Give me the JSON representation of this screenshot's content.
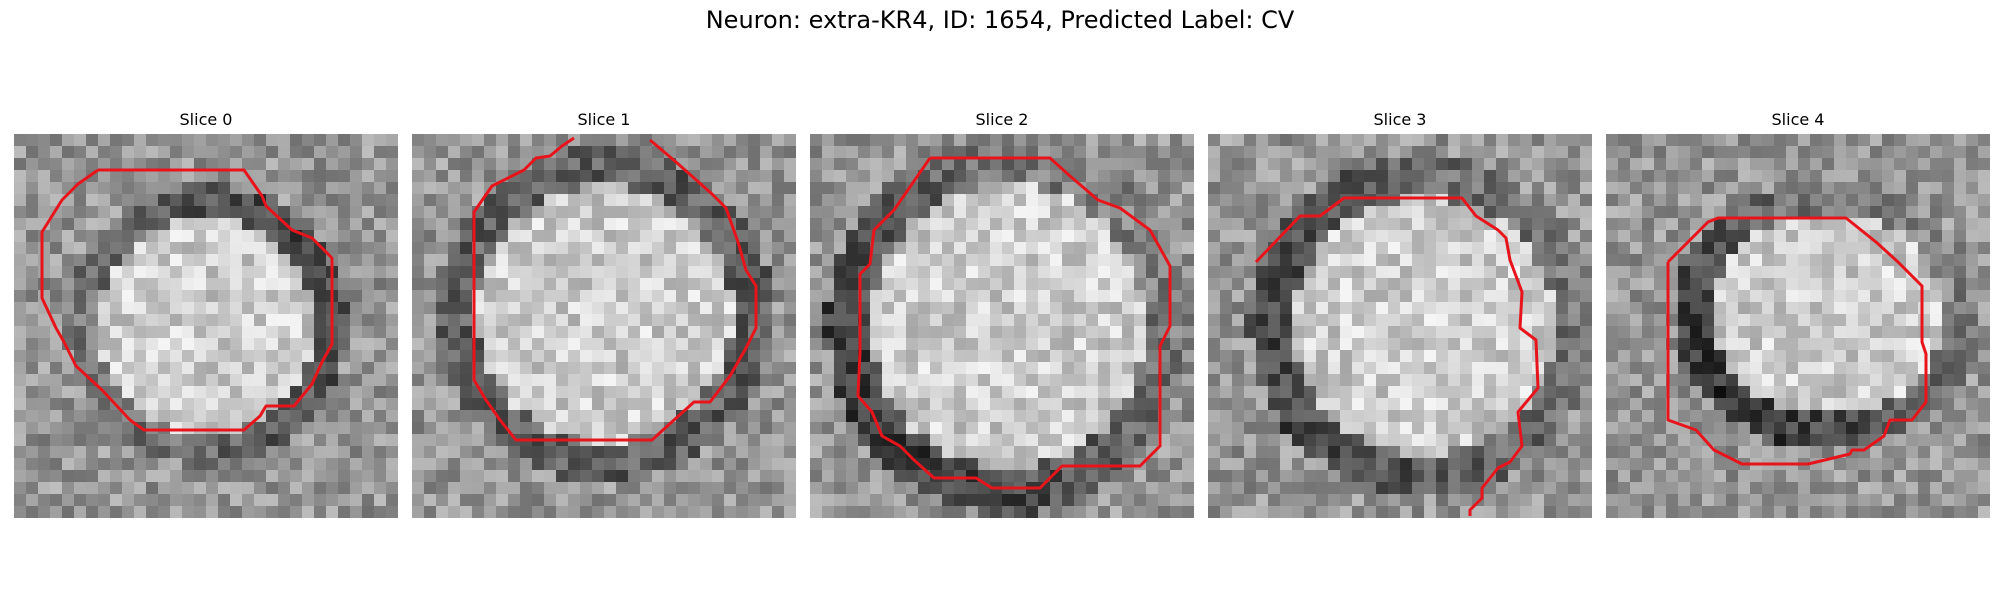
{
  "figure": {
    "title": "Neuron: extra-KR4, ID: 1654, Predicted Label: CV",
    "contour_color": "#e8141c"
  },
  "panels": [
    {
      "title": "Slice 0"
    },
    {
      "title": "Slice 1"
    },
    {
      "title": "Slice 2"
    },
    {
      "title": "Slice 3"
    },
    {
      "title": "Slice 4"
    }
  ]
}
